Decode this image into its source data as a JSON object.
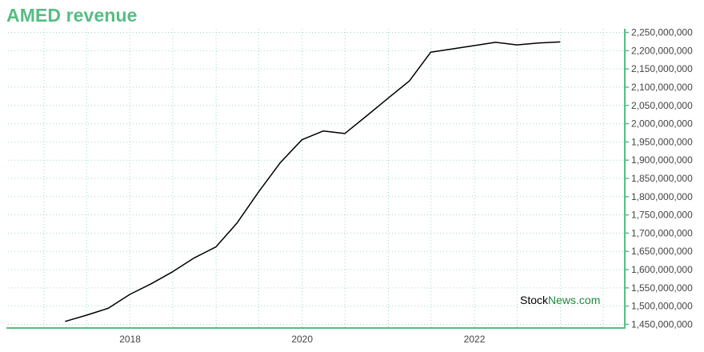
{
  "chart_data": {
    "type": "line",
    "title": "AMED revenue",
    "xlabel": "",
    "ylabel": "",
    "x_tick_labels": [
      "2018",
      "2020",
      "2022"
    ],
    "y_tick_labels": [
      "1,450,000,000",
      "1,500,000,000",
      "1,550,000,000",
      "1,600,000,000",
      "1,650,000,000",
      "1,700,000,000",
      "1,750,000,000",
      "1,800,000,000",
      "1,850,000,000",
      "1,900,000,000",
      "1,950,000,000",
      "2,000,000,000",
      "2,050,000,000",
      "2,100,000,000",
      "2,150,000,000",
      "2,200,000,000",
      "2,250,000,000"
    ],
    "ylim": [
      1440000000,
      2260000000
    ],
    "grid": true,
    "series": [
      {
        "x": [
          "2017-03-31",
          "2017-06-30",
          "2017-09-30",
          "2017-12-31",
          "2018-03-31",
          "2018-06-30",
          "2018-09-30",
          "2018-12-31",
          "2019-03-31",
          "2019-06-30",
          "2019-09-30",
          "2019-12-31",
          "2020-03-31",
          "2020-06-30",
          "2020-09-30",
          "2020-12-31",
          "2021-03-31",
          "2021-06-30",
          "2021-09-30",
          "2021-12-31",
          "2022-03-31",
          "2022-06-30",
          "2022-09-30",
          "2022-12-31"
        ],
        "values": [
          1458000000,
          1475000000,
          1494000000,
          1532000000,
          1561000000,
          1594000000,
          1632000000,
          1662000000,
          1728000000,
          1813000000,
          1893000000,
          1956000000,
          1980000000,
          1973000000,
          2021000000,
          2070000000,
          2117000000,
          2196000000,
          2205000000,
          2214000000,
          2223000000,
          2216000000,
          2221000000,
          2224000000
        ]
      }
    ],
    "line_color": "#000000",
    "accent_color": "#56bd84",
    "grid_color": "#9fdcbc"
  },
  "watermark": {
    "part1": "Stock",
    "part2": "News",
    "part3": ".com"
  }
}
